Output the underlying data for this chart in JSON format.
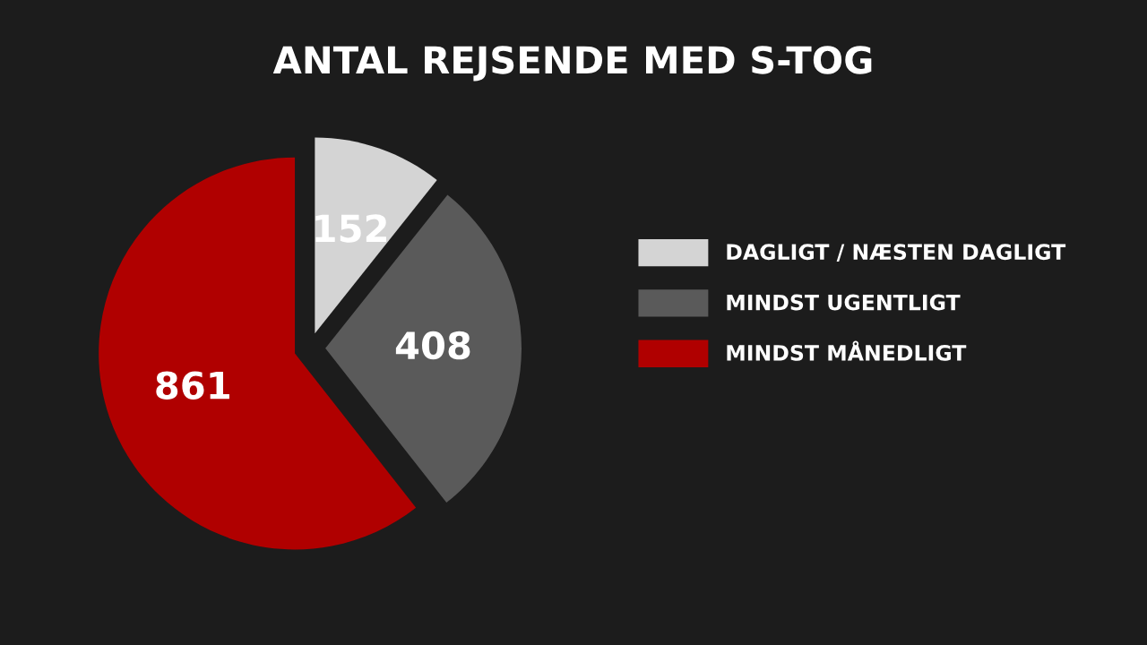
{
  "chart_data": {
    "type": "pie",
    "title": "ANTAL REJSENDE MED S-TOG",
    "categories": [
      "DAGLIGT / NÆSTEN DAGLIGT",
      "MINDST UGENTLIGT",
      "MINDST MÅNEDLIGT"
    ],
    "values": [
      152,
      408,
      861
    ],
    "colors": [
      "#d4d4d4",
      "#5a5a5a",
      "#b00000"
    ],
    "data_labels": true,
    "legend": "right"
  }
}
